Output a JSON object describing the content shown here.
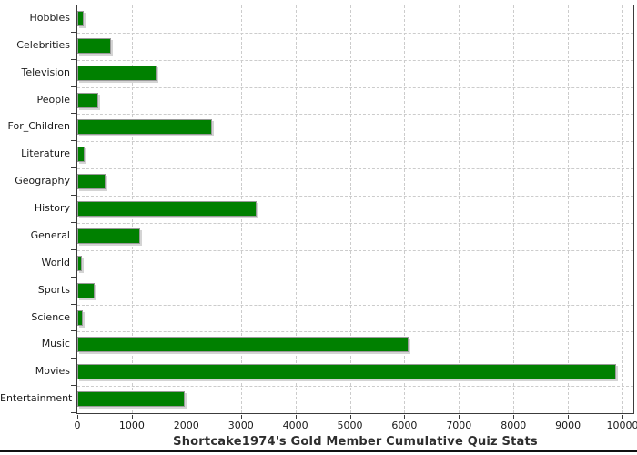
{
  "title": "Shortcake1974's Gold Member Cumulative Quiz Stats",
  "colors": {
    "bar": "#008000",
    "bar_outline": "#9a9a9a",
    "bar_shadow": "#d4d4d4",
    "gridline": "#cccccc",
    "axis": "#3c3c3c",
    "text": "#1a1a1a",
    "bottom_rule": "#111111"
  },
  "chart_data": {
    "type": "bar",
    "orientation": "horizontal",
    "title": "Shortcake1974's Gold Member Cumulative Quiz Stats",
    "xlabel": "",
    "ylabel": "",
    "categories": [
      "Hobbies",
      "Celebrities",
      "Television",
      "People",
      "For_Children",
      "Literature",
      "Geography",
      "History",
      "General",
      "World",
      "Sports",
      "Science",
      "Music",
      "Movies",
      "Entertainment"
    ],
    "values": [
      115,
      620,
      1460,
      390,
      2475,
      135,
      515,
      3290,
      1145,
      80,
      315,
      105,
      6070,
      9885,
      1965
    ],
    "x_ticks": [
      0,
      1000,
      2000,
      3000,
      4000,
      5000,
      6000,
      7000,
      8000,
      9000,
      10000
    ],
    "xlim": [
      0,
      10200
    ],
    "grid": "dashed",
    "legend": "none",
    "bar_color": "#008000"
  }
}
